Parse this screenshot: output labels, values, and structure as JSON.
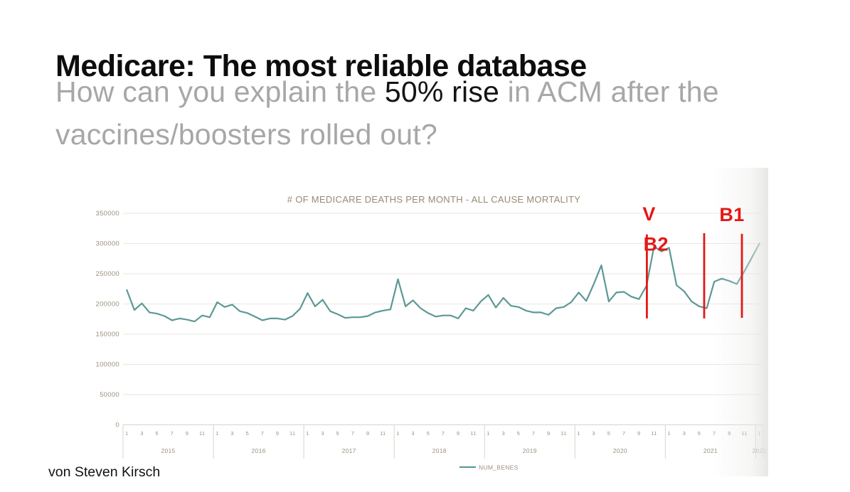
{
  "slide": {
    "title": "Medicare: The most reliable database",
    "subtitle": {
      "gray1": "How can you explain the ",
      "highlight": "50% rise",
      "gray2": " in ACM after the",
      "line2": "vaccines/boosters rolled out?"
    },
    "attribution": "von Steven Kirsch"
  },
  "chart_data": {
    "type": "line",
    "title": "# OF MEDICARE DEATHS PER MONTH - ALL CAUSE MORTALITY",
    "legend": {
      "label": "NUM_BENES",
      "position": "bottom"
    },
    "grid": true,
    "y_axis": {
      "min": 0,
      "max": 350000,
      "tick_step": 50000,
      "tick_labels": [
        "0",
        "50000",
        "100000",
        "150000",
        "200000",
        "250000",
        "300000",
        "350000"
      ]
    },
    "x_axis": {
      "month_labels_shown": [
        1,
        3,
        5,
        7,
        9,
        11
      ],
      "years": [
        {
          "label": "2015",
          "months": 12
        },
        {
          "label": "2016",
          "months": 12
        },
        {
          "label": "2017",
          "months": 12
        },
        {
          "label": "2018",
          "months": 12
        },
        {
          "label": "2019",
          "months": 12
        },
        {
          "label": "2020",
          "months": 12
        },
        {
          "label": "2021",
          "months": 12
        },
        {
          "label": "2022",
          "months": 1
        }
      ]
    },
    "series": [
      {
        "name": "NUM_BENES",
        "color": "#5c9995",
        "values": [
          223000,
          190000,
          201000,
          186000,
          184000,
          180000,
          173000,
          176000,
          174000,
          171000,
          181000,
          178000,
          203000,
          195000,
          199000,
          188000,
          185000,
          179000,
          173000,
          176000,
          176000,
          174000,
          180000,
          192000,
          218000,
          196000,
          207000,
          188000,
          183000,
          177000,
          178000,
          178000,
          180000,
          186000,
          189000,
          191000,
          241000,
          196000,
          206000,
          193000,
          185000,
          179000,
          181000,
          181000,
          176000,
          193000,
          189000,
          204000,
          215000,
          194000,
          210000,
          197000,
          195000,
          189000,
          186000,
          186000,
          182000,
          193000,
          195000,
          203000,
          219000,
          205000,
          233000,
          264000,
          204000,
          219000,
          220000,
          212000,
          208000,
          230000,
          295000,
          287000,
          293000,
          231000,
          221000,
          204000,
          196000,
          193000,
          237000,
          242000,
          238000,
          233000,
          254000,
          277000,
          300000
        ]
      }
    ],
    "annotations": {
      "color": "#e51717",
      "vlines": [
        {
          "month_index": 69.05,
          "from": 176000,
          "to": 315000
        },
        {
          "month_index": 76.66,
          "from": 176000,
          "to": 317000
        },
        {
          "month_index": 81.67,
          "from": 177000,
          "to": 316000
        }
      ],
      "labels": [
        {
          "text": "V",
          "month_index": 69.35,
          "value": 338000,
          "anchor": "middle"
        },
        {
          "text": "B2",
          "month_index": 68.6,
          "value": 288000,
          "anchor": "start"
        },
        {
          "text": "B1",
          "month_index": 82.0,
          "value": 337000,
          "anchor": "end"
        }
      ]
    },
    "colors": {
      "axis_text": "#9b927e",
      "title": "#968b72",
      "grid": "#e9e6e0",
      "axis_line": "#d8d4ca"
    }
  }
}
